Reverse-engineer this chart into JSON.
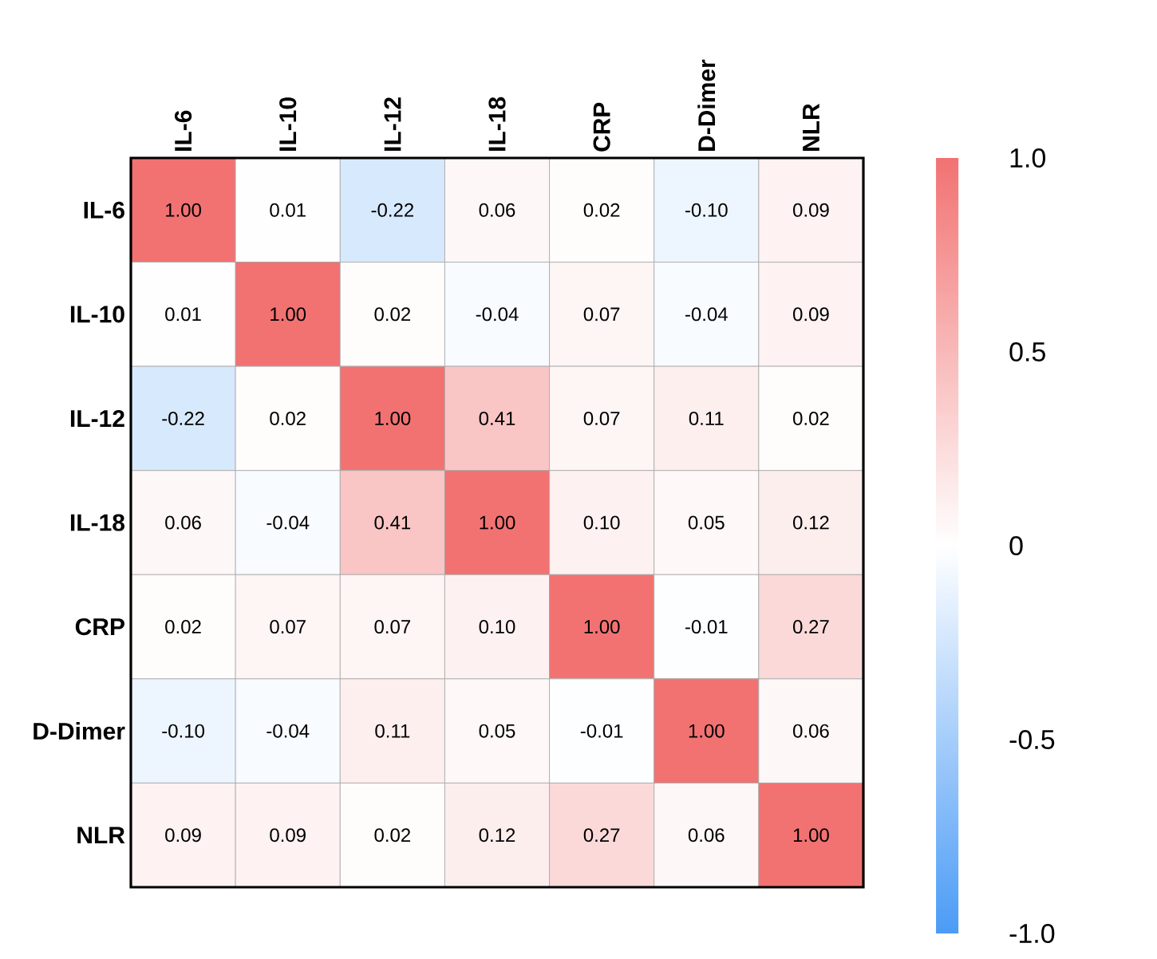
{
  "chart_data": {
    "type": "heatmap",
    "categories": [
      "IL-6",
      "IL-10",
      "IL-12",
      "IL-18",
      "CRP",
      "D-Dimer",
      "NLR"
    ],
    "y_categories": [
      "IL-6",
      "IL-10",
      "IL-12",
      "IL-18",
      "CRP",
      "D-Dimer",
      "NLR"
    ],
    "cells": [
      [
        1.0,
        0.01,
        -0.22,
        0.06,
        0.02,
        -0.1,
        0.09
      ],
      [
        0.01,
        1.0,
        0.02,
        -0.04,
        0.07,
        -0.04,
        0.09
      ],
      [
        -0.22,
        0.02,
        1.0,
        0.41,
        0.07,
        0.11,
        0.02
      ],
      [
        0.06,
        -0.04,
        0.41,
        1.0,
        0.1,
        0.05,
        0.12
      ],
      [
        0.02,
        0.07,
        0.07,
        0.1,
        1.0,
        -0.01,
        0.27
      ],
      [
        -0.1,
        -0.04,
        0.11,
        0.05,
        -0.01,
        1.0,
        0.06
      ],
      [
        0.09,
        0.09,
        0.02,
        0.12,
        0.27,
        0.06,
        1.0
      ]
    ],
    "cell_labels": [
      [
        "1.00",
        "0.01",
        "-0.22",
        "0.06",
        "0.02",
        "-0.10",
        "0.09"
      ],
      [
        "0.01",
        "1.00",
        "0.02",
        "-0.04",
        "0.07",
        "-0.04",
        "0.09"
      ],
      [
        "-0.22",
        "0.02",
        "1.00",
        "0.41",
        "0.07",
        "0.11",
        "0.02"
      ],
      [
        "0.06",
        "-0.04",
        "0.41",
        "1.00",
        "0.10",
        "0.05",
        "0.12"
      ],
      [
        "0.02",
        "0.07",
        "0.07",
        "0.10",
        "1.00",
        "-0.01",
        "0.27"
      ],
      [
        "-0.10",
        "-0.04",
        "0.11",
        "0.05",
        "-0.01",
        "1.00",
        "0.06"
      ],
      [
        "0.09",
        "0.09",
        "0.02",
        "0.12",
        "0.27",
        "0.06",
        "1.00"
      ]
    ],
    "colors": [
      "#4b9bf6",
      "#ffffff",
      "#f27272"
    ],
    "clim": [
      -1,
      1
    ],
    "cticks": [
      {
        "value": 1,
        "label": "1.0"
      },
      {
        "value": 0.5,
        "label": "0.5"
      },
      0,
      {
        "value": -0.5,
        "label": "-0.5"
      },
      {
        "value": -1,
        "label": "-1.0"
      }
    ]
  }
}
